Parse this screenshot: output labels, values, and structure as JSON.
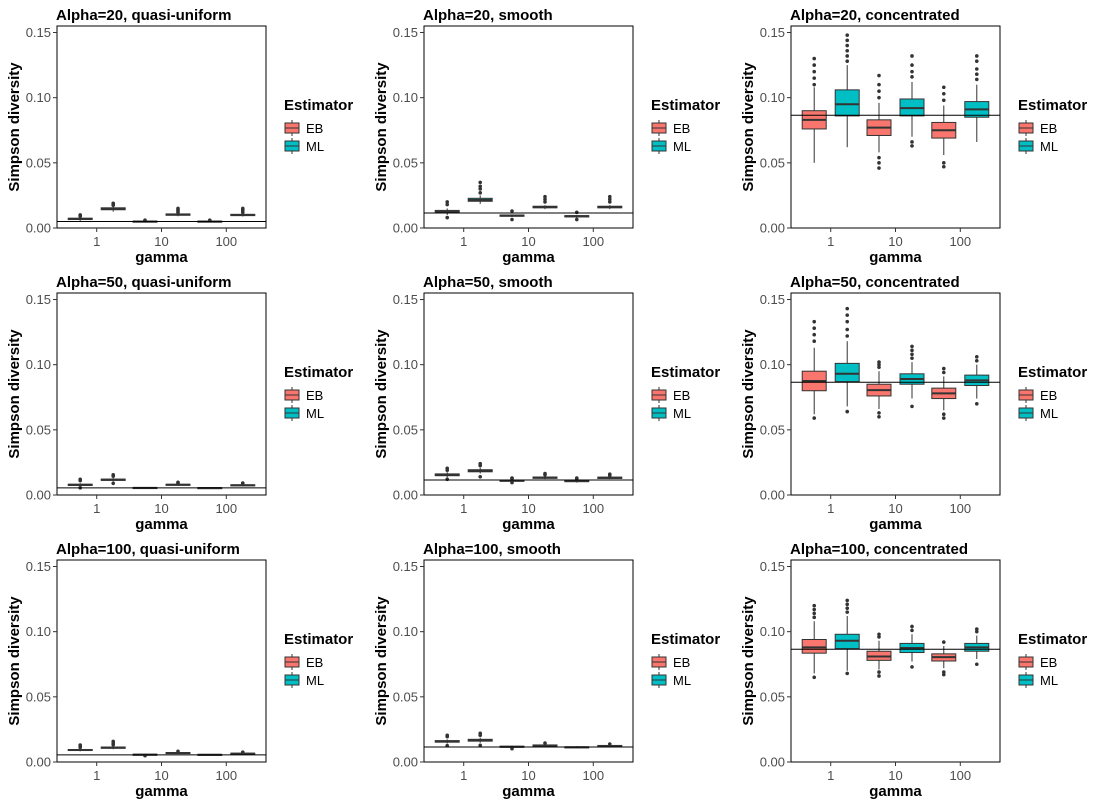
{
  "chart_data": {
    "type": "boxplot",
    "layout": "3x3 facet grid",
    "xlabel": "gamma",
    "ylabel": "Simpson diversity",
    "categories": [
      "1",
      "10",
      "100"
    ],
    "ylim": [
      0,
      0.155
    ],
    "yticks": [
      0.0,
      0.05,
      0.1,
      0.15
    ],
    "ytick_labels": [
      "0.00",
      "0.05",
      "0.10",
      "0.15"
    ],
    "legend": {
      "title": "Estimator",
      "entries": [
        {
          "name": "EB",
          "color": "#F8766D"
        },
        {
          "name": "ML",
          "color": "#00BFC4"
        }
      ]
    },
    "panels": [
      {
        "title": "Alpha=20, quasi-uniform",
        "ref": 0.005,
        "boxes": [
          {
            "cat": "1",
            "est": "EB",
            "min": 0.0055,
            "q1": 0.0065,
            "med": 0.007,
            "q3": 0.0075,
            "max": 0.008,
            "outliers": [
              0.009,
              0.0095,
              0.01
            ]
          },
          {
            "cat": "1",
            "est": "ML",
            "min": 0.0125,
            "q1": 0.014,
            "med": 0.0147,
            "q3": 0.0155,
            "max": 0.017,
            "outliers": [
              0.0175,
              0.018,
              0.019
            ]
          },
          {
            "cat": "10",
            "est": "EB",
            "min": 0.0045,
            "q1": 0.0048,
            "med": 0.005,
            "q3": 0.0052,
            "max": 0.0055,
            "outliers": [
              0.006
            ]
          },
          {
            "cat": "10",
            "est": "ML",
            "min": 0.009,
            "q1": 0.0098,
            "med": 0.0103,
            "q3": 0.0108,
            "max": 0.0115,
            "outliers": [
              0.012,
              0.013,
              0.014,
              0.015
            ]
          },
          {
            "cat": "100",
            "est": "EB",
            "min": 0.0045,
            "q1": 0.0048,
            "med": 0.005,
            "q3": 0.0052,
            "max": 0.0055,
            "outliers": [
              0.006
            ]
          },
          {
            "cat": "100",
            "est": "ML",
            "min": 0.0088,
            "q1": 0.0095,
            "med": 0.01,
            "q3": 0.0105,
            "max": 0.0112,
            "outliers": [
              0.012,
              0.013,
              0.014,
              0.015
            ]
          }
        ]
      },
      {
        "title": "Alpha=20, smooth",
        "ref": 0.0115,
        "boxes": [
          {
            "cat": "1",
            "est": "EB",
            "min": 0.01,
            "q1": 0.0118,
            "med": 0.0125,
            "q3": 0.0135,
            "max": 0.015,
            "outliers": [
              0.008,
              0.018,
              0.02
            ]
          },
          {
            "cat": "1",
            "est": "ML",
            "min": 0.0185,
            "q1": 0.0205,
            "med": 0.0215,
            "q3": 0.0228,
            "max": 0.025,
            "outliers": [
              0.027,
              0.03,
              0.032,
              0.035
            ]
          },
          {
            "cat": "10",
            "est": "EB",
            "min": 0.0085,
            "q1": 0.009,
            "med": 0.0095,
            "q3": 0.01,
            "max": 0.0105,
            "outliers": [
              0.0065,
              0.013
            ]
          },
          {
            "cat": "10",
            "est": "ML",
            "min": 0.0145,
            "q1": 0.0155,
            "med": 0.016,
            "q3": 0.0167,
            "max": 0.0175,
            "outliers": [
              0.02,
              0.022,
              0.024
            ]
          },
          {
            "cat": "100",
            "est": "EB",
            "min": 0.0075,
            "q1": 0.0085,
            "med": 0.009,
            "q3": 0.0095,
            "max": 0.01,
            "outliers": [
              0.0065,
              0.012
            ]
          },
          {
            "cat": "100",
            "est": "ML",
            "min": 0.0145,
            "q1": 0.0155,
            "med": 0.016,
            "q3": 0.0167,
            "max": 0.0175,
            "outliers": [
              0.02,
              0.022,
              0.024
            ]
          }
        ]
      },
      {
        "title": "Alpha=20, concentrated",
        "ref": 0.0865,
        "boxes": [
          {
            "cat": "1",
            "est": "EB",
            "min": 0.05,
            "q1": 0.076,
            "med": 0.083,
            "q3": 0.09,
            "max": 0.108,
            "outliers": [
              0.11,
              0.115,
              0.12,
              0.125,
              0.13
            ]
          },
          {
            "cat": "1",
            "est": "ML",
            "min": 0.062,
            "q1": 0.086,
            "med": 0.095,
            "q3": 0.106,
            "max": 0.125,
            "outliers": [
              0.128,
              0.132,
              0.136,
              0.14,
              0.144,
              0.148
            ]
          },
          {
            "cat": "10",
            "est": "EB",
            "min": 0.058,
            "q1": 0.071,
            "med": 0.077,
            "q3": 0.083,
            "max": 0.096,
            "outliers": [
              0.046,
              0.05,
              0.054,
              0.1,
              0.105,
              0.11,
              0.117
            ]
          },
          {
            "cat": "10",
            "est": "ML",
            "min": 0.07,
            "q1": 0.086,
            "med": 0.092,
            "q3": 0.099,
            "max": 0.112,
            "outliers": [
              0.063,
              0.066,
              0.116,
              0.12,
              0.125,
              0.132
            ]
          },
          {
            "cat": "100",
            "est": "EB",
            "min": 0.056,
            "q1": 0.069,
            "med": 0.075,
            "q3": 0.081,
            "max": 0.094,
            "outliers": [
              0.047,
              0.05,
              0.098,
              0.103,
              0.108
            ]
          },
          {
            "cat": "100",
            "est": "ML",
            "min": 0.066,
            "q1": 0.085,
            "med": 0.091,
            "q3": 0.097,
            "max": 0.11,
            "outliers": [
              0.114,
              0.118,
              0.122,
              0.128,
              0.132
            ]
          }
        ]
      },
      {
        "title": "Alpha=50, quasi-uniform",
        "ref": 0.0055,
        "boxes": [
          {
            "cat": "1",
            "est": "EB",
            "min": 0.0065,
            "q1": 0.0073,
            "med": 0.0078,
            "q3": 0.0083,
            "max": 0.009,
            "outliers": [
              0.0055,
              0.011,
              0.012
            ]
          },
          {
            "cat": "1",
            "est": "ML",
            "min": 0.0105,
            "q1": 0.0112,
            "med": 0.0117,
            "q3": 0.0122,
            "max": 0.013,
            "outliers": [
              0.009,
              0.0145,
              0.0155
            ]
          },
          {
            "cat": "10",
            "est": "EB",
            "min": 0.005,
            "q1": 0.0053,
            "med": 0.0055,
            "q3": 0.0057,
            "max": 0.006,
            "outliers": []
          },
          {
            "cat": "10",
            "est": "ML",
            "min": 0.0072,
            "q1": 0.0076,
            "med": 0.0079,
            "q3": 0.0082,
            "max": 0.0086,
            "outliers": [
              0.0092,
              0.0097
            ]
          },
          {
            "cat": "100",
            "est": "EB",
            "min": 0.005,
            "q1": 0.0052,
            "med": 0.0054,
            "q3": 0.0056,
            "max": 0.0058,
            "outliers": []
          },
          {
            "cat": "100",
            "est": "ML",
            "min": 0.0068,
            "q1": 0.0072,
            "med": 0.0075,
            "q3": 0.0078,
            "max": 0.0082,
            "outliers": [
              0.0088,
              0.0092
            ]
          }
        ]
      },
      {
        "title": "Alpha=50, smooth",
        "ref": 0.0115,
        "boxes": [
          {
            "cat": "1",
            "est": "EB",
            "min": 0.0135,
            "q1": 0.0148,
            "med": 0.0155,
            "q3": 0.0162,
            "max": 0.0175,
            "outliers": [
              0.012,
              0.019,
              0.0205
            ]
          },
          {
            "cat": "1",
            "est": "ML",
            "min": 0.0165,
            "q1": 0.0178,
            "med": 0.0186,
            "q3": 0.0194,
            "max": 0.0208,
            "outliers": [
              0.014,
              0.0225,
              0.024
            ]
          },
          {
            "cat": "10",
            "est": "EB",
            "min": 0.0098,
            "q1": 0.0105,
            "med": 0.011,
            "q3": 0.0115,
            "max": 0.0122,
            "outliers": [
              0.0095,
              0.0128,
              0.013
            ]
          },
          {
            "cat": "10",
            "est": "ML",
            "min": 0.0122,
            "q1": 0.0128,
            "med": 0.0133,
            "q3": 0.0138,
            "max": 0.0145,
            "outliers": [
              0.0155,
              0.0165
            ]
          },
          {
            "cat": "100",
            "est": "EB",
            "min": 0.0095,
            "q1": 0.0102,
            "med": 0.0107,
            "q3": 0.0112,
            "max": 0.0118,
            "outliers": [
              0.0125,
              0.013
            ]
          },
          {
            "cat": "100",
            "est": "ML",
            "min": 0.0122,
            "q1": 0.0127,
            "med": 0.0132,
            "q3": 0.0137,
            "max": 0.0143,
            "outliers": [
              0.015,
              0.016
            ]
          }
        ]
      },
      {
        "title": "Alpha=50, concentrated",
        "ref": 0.0865,
        "boxes": [
          {
            "cat": "1",
            "est": "EB",
            "min": 0.062,
            "q1": 0.08,
            "med": 0.0875,
            "q3": 0.095,
            "max": 0.113,
            "outliers": [
              0.059,
              0.118,
              0.123,
              0.128,
              0.133
            ]
          },
          {
            "cat": "1",
            "est": "ML",
            "min": 0.068,
            "q1": 0.087,
            "med": 0.093,
            "q3": 0.101,
            "max": 0.118,
            "outliers": [
              0.064,
              0.122,
              0.127,
              0.133,
              0.138,
              0.143
            ]
          },
          {
            "cat": "10",
            "est": "EB",
            "min": 0.066,
            "q1": 0.076,
            "med": 0.0805,
            "q3": 0.085,
            "max": 0.095,
            "outliers": [
              0.06,
              0.063,
              0.098,
              0.1,
              0.102
            ]
          },
          {
            "cat": "10",
            "est": "ML",
            "min": 0.074,
            "q1": 0.085,
            "med": 0.089,
            "q3": 0.093,
            "max": 0.102,
            "outliers": [
              0.068,
              0.105,
              0.108,
              0.111,
              0.114
            ]
          },
          {
            "cat": "100",
            "est": "EB",
            "min": 0.065,
            "q1": 0.074,
            "med": 0.078,
            "q3": 0.082,
            "max": 0.091,
            "outliers": [
              0.059,
              0.062,
              0.094,
              0.097
            ]
          },
          {
            "cat": "100",
            "est": "ML",
            "min": 0.074,
            "q1": 0.084,
            "med": 0.088,
            "q3": 0.092,
            "max": 0.1,
            "outliers": [
              0.07,
              0.103,
              0.106
            ]
          }
        ]
      },
      {
        "title": "Alpha=100, quasi-uniform",
        "ref": 0.0055,
        "boxes": [
          {
            "cat": "1",
            "est": "EB",
            "min": 0.0082,
            "q1": 0.0088,
            "med": 0.0092,
            "q3": 0.0096,
            "max": 0.0102,
            "outliers": [
              0.0112,
              0.0122,
              0.013
            ]
          },
          {
            "cat": "1",
            "est": "ML",
            "min": 0.0098,
            "q1": 0.0105,
            "med": 0.011,
            "q3": 0.0115,
            "max": 0.0122,
            "outliers": [
              0.0132,
              0.0145,
              0.0158
            ]
          },
          {
            "cat": "10",
            "est": "EB",
            "min": 0.0052,
            "q1": 0.0055,
            "med": 0.0057,
            "q3": 0.0059,
            "max": 0.0062,
            "outliers": [
              0.0048
            ]
          },
          {
            "cat": "10",
            "est": "ML",
            "min": 0.0062,
            "q1": 0.0066,
            "med": 0.0069,
            "q3": 0.0072,
            "max": 0.0076,
            "outliers": [
              0.0082
            ]
          },
          {
            "cat": "100",
            "est": "EB",
            "min": 0.0052,
            "q1": 0.0054,
            "med": 0.0056,
            "q3": 0.0058,
            "max": 0.006,
            "outliers": []
          },
          {
            "cat": "100",
            "est": "ML",
            "min": 0.0058,
            "q1": 0.0061,
            "med": 0.0064,
            "q3": 0.0067,
            "max": 0.007,
            "outliers": [
              0.0075
            ]
          }
        ]
      },
      {
        "title": "Alpha=100, smooth",
        "ref": 0.0115,
        "boxes": [
          {
            "cat": "1",
            "est": "EB",
            "min": 0.0142,
            "q1": 0.0152,
            "med": 0.0158,
            "q3": 0.0164,
            "max": 0.0174,
            "outliers": [
              0.0125,
              0.0195,
              0.0205
            ]
          },
          {
            "cat": "1",
            "est": "ML",
            "min": 0.0148,
            "q1": 0.016,
            "med": 0.0167,
            "q3": 0.0174,
            "max": 0.0186,
            "outliers": [
              0.0128,
              0.0205,
              0.022
            ]
          },
          {
            "cat": "10",
            "est": "EB",
            "min": 0.0108,
            "q1": 0.0113,
            "med": 0.0117,
            "q3": 0.0121,
            "max": 0.0127,
            "outliers": [
              0.0102
            ]
          },
          {
            "cat": "10",
            "est": "ML",
            "min": 0.0118,
            "q1": 0.0123,
            "med": 0.0127,
            "q3": 0.0131,
            "max": 0.0137,
            "outliers": [
              0.0145
            ]
          },
          {
            "cat": "100",
            "est": "EB",
            "min": 0.0106,
            "q1": 0.011,
            "med": 0.0113,
            "q3": 0.0116,
            "max": 0.0121,
            "outliers": []
          },
          {
            "cat": "100",
            "est": "ML",
            "min": 0.0114,
            "q1": 0.0119,
            "med": 0.0123,
            "q3": 0.0127,
            "max": 0.0132,
            "outliers": [
              0.0138
            ]
          }
        ]
      },
      {
        "title": "Alpha=100, concentrated",
        "ref": 0.0865,
        "boxes": [
          {
            "cat": "1",
            "est": "EB",
            "min": 0.068,
            "q1": 0.0835,
            "med": 0.088,
            "q3": 0.094,
            "max": 0.108,
            "outliers": [
              0.065,
              0.111,
              0.114,
              0.117,
              0.12
            ]
          },
          {
            "cat": "1",
            "est": "ML",
            "min": 0.07,
            "q1": 0.087,
            "med": 0.093,
            "q3": 0.098,
            "max": 0.112,
            "outliers": [
              0.068,
              0.115,
              0.118,
              0.121,
              0.124
            ]
          },
          {
            "cat": "10",
            "est": "EB",
            "min": 0.071,
            "q1": 0.078,
            "med": 0.081,
            "q3": 0.085,
            "max": 0.093,
            "outliers": [
              0.066,
              0.069,
              0.096,
              0.098
            ]
          },
          {
            "cat": "10",
            "est": "ML",
            "min": 0.077,
            "q1": 0.084,
            "med": 0.0875,
            "q3": 0.091,
            "max": 0.098,
            "outliers": [
              0.073,
              0.101,
              0.104
            ]
          },
          {
            "cat": "100",
            "est": "EB",
            "min": 0.072,
            "q1": 0.0775,
            "med": 0.0805,
            "q3": 0.083,
            "max": 0.089,
            "outliers": [
              0.067,
              0.069,
              0.092
            ]
          },
          {
            "cat": "100",
            "est": "ML",
            "min": 0.079,
            "q1": 0.085,
            "med": 0.088,
            "q3": 0.091,
            "max": 0.097,
            "outliers": [
              0.075,
              0.1,
              0.102
            ]
          }
        ]
      }
    ]
  }
}
